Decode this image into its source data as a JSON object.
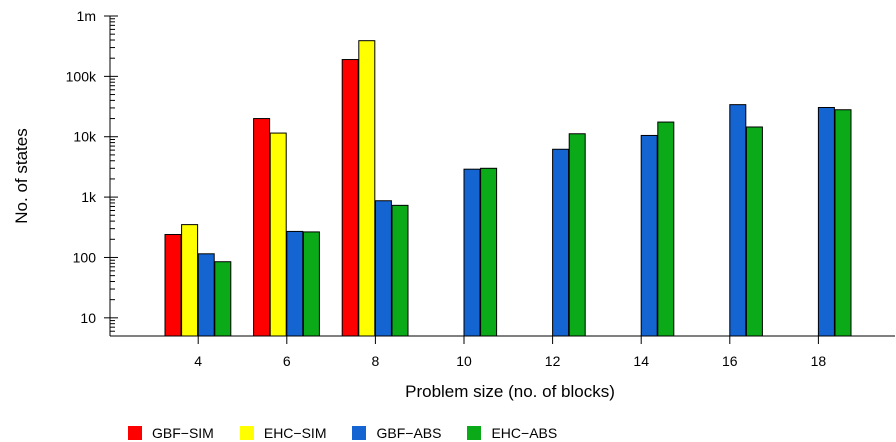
{
  "chart_data": {
    "type": "bar",
    "xlabel": "Problem size (no. of blocks)",
    "ylabel": "No. of states",
    "yscale": "log",
    "ylim": [
      5,
      1000000
    ],
    "y_ticks": [
      10,
      100,
      1000,
      10000,
      100000,
      1000000
    ],
    "y_tick_labels": [
      "10",
      "100",
      "1k",
      "10k",
      "100k",
      "1m"
    ],
    "categories": [
      "4",
      "6",
      "8",
      "10",
      "12",
      "14",
      "16",
      "18"
    ],
    "series": [
      {
        "name": "GBF−SIM",
        "color": "#ff0000",
        "values": [
          240,
          20000,
          190000,
          null,
          null,
          null,
          null,
          null
        ]
      },
      {
        "name": "EHC−SIM",
        "color": "#ffff00",
        "values": [
          350,
          11500,
          390000,
          null,
          null,
          null,
          null,
          null
        ]
      },
      {
        "name": "GBF−ABS",
        "color": "#1464d2",
        "values": [
          115,
          270,
          870,
          2900,
          6200,
          10500,
          34000,
          30500
        ]
      },
      {
        "name": "EHC−ABS",
        "color": "#0aaa19",
        "values": [
          85,
          265,
          730,
          3000,
          11200,
          17500,
          14500,
          28000
        ]
      }
    ],
    "grid": false,
    "legend_position": "bottom"
  }
}
